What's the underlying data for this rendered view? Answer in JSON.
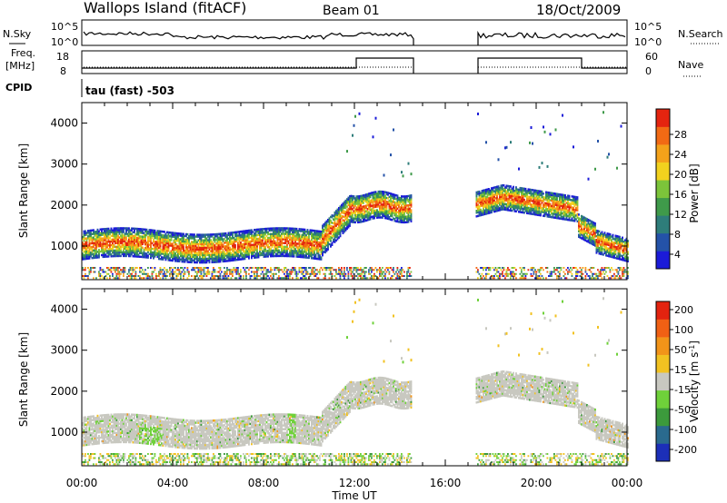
{
  "header": {
    "site": "Wallops Island (fitACF)",
    "beam": "Beam 01",
    "date": "18/Oct/2009"
  },
  "top_panels": {
    "nsky_label": "N.Sky",
    "nsky_ticks": [
      "10^5",
      "10^0"
    ],
    "nsearch_label": "N.Search",
    "nsearch_ticks": [
      "10^5",
      "10^0"
    ],
    "freq_label_1": "Freq.",
    "freq_label_2": "[MHz]",
    "freq_ticks": [
      "18",
      "8"
    ],
    "nave_label": "Nave",
    "nave_ticks": [
      "60",
      "0"
    ],
    "cpid_label": "CPID",
    "cpid_text": "tau (fast) -503"
  },
  "chart_data": [
    {
      "type": "heatmap",
      "title": "",
      "ylabel": "Slant Range [km]",
      "xlabel": "",
      "ylim": [
        180,
        4500
      ],
      "yticks": [
        1000,
        2000,
        3000,
        4000
      ],
      "xlim_hours": [
        0,
        24
      ],
      "colorbar": {
        "label": "Power [dB]",
        "ticks": [
          4,
          8,
          12,
          16,
          20,
          24,
          28
        ],
        "colors": [
          "#1b1bd8",
          "#2452a8",
          "#2e7d7a",
          "#3f9a4a",
          "#7cc43a",
          "#f2d21e",
          "#f4a21a",
          "#f26a14",
          "#e4240f"
        ]
      }
    },
    {
      "type": "heatmap",
      "title": "",
      "ylabel": "Slant Range [km]",
      "xlabel": "Time UT",
      "ylim": [
        180,
        4500
      ],
      "yticks": [
        1000,
        2000,
        3000,
        4000
      ],
      "x_tick_labels": [
        "00:00",
        "04:00",
        "08:00",
        "12:00",
        "16:00",
        "20:00",
        "00:00"
      ],
      "xlim_hours": [
        0,
        24
      ],
      "colorbar": {
        "label": "Velocity [m s^-1]",
        "ticks": [
          "200",
          "100",
          "50",
          "15",
          "-15",
          "-50",
          "-100",
          "-200"
        ],
        "colors": [
          "#1c2fb8",
          "#2a6a8e",
          "#3c9a3c",
          "#6fd13a",
          "#c8c8c0",
          "#f2c221",
          "#f29419",
          "#f06014",
          "#e3230f"
        ]
      }
    }
  ]
}
